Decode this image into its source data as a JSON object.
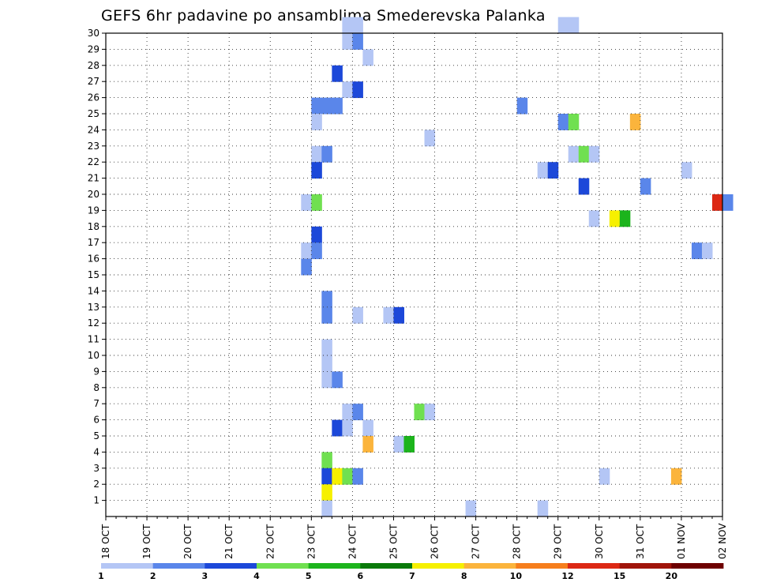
{
  "chart_data": {
    "type": "heatmap",
    "title": "GEFS 6hr padavine po ansamblima Smederevska Palanka",
    "xlabel": "",
    "ylabel": "",
    "grid": true,
    "legend": "bottom",
    "x_ticks": [
      "18 OCT",
      "19 OCT",
      "20 OCT",
      "21 OCT",
      "22 OCT",
      "23 OCT",
      "24 OCT",
      "25 OCT",
      "26 OCT",
      "27 OCT",
      "28 OCT",
      "29 OCT",
      "30 OCT",
      "31 OCT",
      "01 NOV",
      "02 NOV"
    ],
    "y_ticks": [
      "1",
      "2",
      "3",
      "4",
      "5",
      "6",
      "7",
      "8",
      "9",
      "10",
      "11",
      "12",
      "13",
      "14",
      "15",
      "16",
      "17",
      "18",
      "19",
      "20",
      "21",
      "22",
      "23",
      "24",
      "25",
      "26",
      "27",
      "28",
      "29",
      "30"
    ],
    "ylim": [
      0,
      30
    ],
    "colorbar": {
      "labels": [
        "1",
        "2",
        "3",
        "4",
        "5",
        "6",
        "7",
        "8",
        "10",
        "12",
        "15",
        "20"
      ],
      "colors": [
        "#b4c6f5",
        "#5a86ea",
        "#1c48d9",
        "#70e050",
        "#1cb41c",
        "#0a7a0a",
        "#f6f000",
        "#fbb43c",
        "#f67e1c",
        "#dc2814",
        "#a0140a",
        "#6e0000"
      ]
    },
    "cells": [
      {
        "t": "23 OCT 18Z",
        "m": 30,
        "c": 0
      },
      {
        "t": "24 OCT 00Z",
        "m": 30,
        "c": 0
      },
      {
        "t": "29 OCT 00Z",
        "m": 30,
        "c": 0
      },
      {
        "t": "29 OCT 06Z",
        "m": 30,
        "c": 0
      },
      {
        "t": "23 OCT 18Z",
        "m": 29,
        "c": 0
      },
      {
        "t": "24 OCT 00Z",
        "m": 29,
        "c": 1
      },
      {
        "t": "24 OCT 06Z",
        "m": 28,
        "c": 0
      },
      {
        "t": "23 OCT 12Z",
        "m": 27,
        "c": 2
      },
      {
        "t": "23 OCT 18Z",
        "m": 26,
        "c": 0
      },
      {
        "t": "24 OCT 00Z",
        "m": 26,
        "c": 2
      },
      {
        "t": "23 OCT 00Z",
        "m": 25,
        "c": 1
      },
      {
        "t": "23 OCT 06Z",
        "m": 25,
        "c": 1
      },
      {
        "t": "23 OCT 12Z",
        "m": 25,
        "c": 1
      },
      {
        "t": "28 OCT 00Z",
        "m": 25,
        "c": 1
      },
      {
        "t": "23 OCT 00Z",
        "m": 24,
        "c": 0
      },
      {
        "t": "29 OCT 00Z",
        "m": 24,
        "c": 1
      },
      {
        "t": "29 OCT 06Z",
        "m": 24,
        "c": 3
      },
      {
        "t": "30 OCT 18Z",
        "m": 24,
        "c": 7
      },
      {
        "t": "25 OCT 18Z",
        "m": 23,
        "c": 0
      },
      {
        "t": "23 OCT 00Z",
        "m": 22,
        "c": 0
      },
      {
        "t": "23 OCT 06Z",
        "m": 22,
        "c": 1
      },
      {
        "t": "29 OCT 06Z",
        "m": 22,
        "c": 0
      },
      {
        "t": "29 OCT 12Z",
        "m": 22,
        "c": 3
      },
      {
        "t": "29 OCT 18Z",
        "m": 22,
        "c": 0
      },
      {
        "t": "23 OCT 00Z",
        "m": 21,
        "c": 2
      },
      {
        "t": "28 OCT 12Z",
        "m": 21,
        "c": 0
      },
      {
        "t": "28 OCT 18Z",
        "m": 21,
        "c": 2
      },
      {
        "t": "01 NOV 00Z",
        "m": 21,
        "c": 0
      },
      {
        "t": "29 OCT 12Z",
        "m": 20,
        "c": 2
      },
      {
        "t": "31 OCT 00Z",
        "m": 20,
        "c": 1
      },
      {
        "t": "22 OCT 18Z",
        "m": 19,
        "c": 0
      },
      {
        "t": "23 OCT 00Z",
        "m": 19,
        "c": 3
      },
      {
        "t": "01 NOV 18Z",
        "m": 19,
        "c": 9
      },
      {
        "t": "02 NOV 00Z",
        "m": 19,
        "c": 1
      },
      {
        "t": "29 OCT 18Z",
        "m": 18,
        "c": 0
      },
      {
        "t": "30 OCT 06Z",
        "m": 18,
        "c": 6
      },
      {
        "t": "30 OCT 12Z",
        "m": 18,
        "c": 4
      },
      {
        "t": "23 OCT 00Z",
        "m": 17,
        "c": 2
      },
      {
        "t": "22 OCT 18Z",
        "m": 16,
        "c": 0
      },
      {
        "t": "23 OCT 00Z",
        "m": 16,
        "c": 1
      },
      {
        "t": "01 NOV 06Z",
        "m": 16,
        "c": 1
      },
      {
        "t": "01 NOV 12Z",
        "m": 16,
        "c": 0
      },
      {
        "t": "22 OCT 18Z",
        "m": 15,
        "c": 1
      },
      {
        "t": "23 OCT 06Z",
        "m": 13,
        "c": 1
      },
      {
        "t": "23 OCT 06Z",
        "m": 12,
        "c": 1
      },
      {
        "t": "24 OCT 00Z",
        "m": 12,
        "c": 0
      },
      {
        "t": "24 OCT 18Z",
        "m": 12,
        "c": 0
      },
      {
        "t": "25 OCT 00Z",
        "m": 12,
        "c": 2
      },
      {
        "t": "23 OCT 06Z",
        "m": 10,
        "c": 0
      },
      {
        "t": "23 OCT 06Z",
        "m": 9,
        "c": 0
      },
      {
        "t": "23 OCT 06Z",
        "m": 8,
        "c": 0
      },
      {
        "t": "23 OCT 12Z",
        "m": 8,
        "c": 1
      },
      {
        "t": "23 OCT 18Z",
        "m": 6,
        "c": 0
      },
      {
        "t": "24 OCT 00Z",
        "m": 6,
        "c": 1
      },
      {
        "t": "25 OCT 12Z",
        "m": 6,
        "c": 3
      },
      {
        "t": "25 OCT 18Z",
        "m": 6,
        "c": 0
      },
      {
        "t": "23 OCT 12Z",
        "m": 5,
        "c": 2
      },
      {
        "t": "23 OCT 18Z",
        "m": 5,
        "c": 0
      },
      {
        "t": "24 OCT 06Z",
        "m": 5,
        "c": 0
      },
      {
        "t": "24 OCT 06Z",
        "m": 4,
        "c": 7
      },
      {
        "t": "25 OCT 00Z",
        "m": 4,
        "c": 0
      },
      {
        "t": "25 OCT 06Z",
        "m": 4,
        "c": 4
      },
      {
        "t": "23 OCT 06Z",
        "m": 3,
        "c": 3
      },
      {
        "t": "23 OCT 06Z",
        "m": 2,
        "c": 2
      },
      {
        "t": "23 OCT 12Z",
        "m": 2,
        "c": 6
      },
      {
        "t": "23 OCT 18Z",
        "m": 2,
        "c": 3
      },
      {
        "t": "24 OCT 00Z",
        "m": 2,
        "c": 1
      },
      {
        "t": "30 OCT 00Z",
        "m": 2,
        "c": 0
      },
      {
        "t": "31 OCT 18Z",
        "m": 2,
        "c": 7
      },
      {
        "t": "23 OCT 06Z",
        "m": 1,
        "c": 6
      },
      {
        "t": "23 OCT 06Z",
        "m": 0,
        "c": 0
      },
      {
        "t": "26 OCT 18Z",
        "m": 0,
        "c": 0
      },
      {
        "t": "28 OCT 12Z",
        "m": 0,
        "c": 0
      }
    ]
  }
}
